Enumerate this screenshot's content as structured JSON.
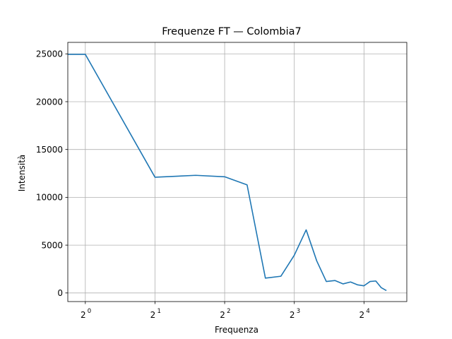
{
  "chart_data": {
    "type": "line",
    "title": "Frequenze FT — Colombia7",
    "xlabel": "Frequenza",
    "ylabel": "Intensità",
    "xscale": "log2",
    "xlim": [
      0.84,
      24.5
    ],
    "ylim": [
      -900,
      26200
    ],
    "grid": true,
    "x_ticks": [
      {
        "value": 1,
        "base": "2",
        "exp": "0"
      },
      {
        "value": 2,
        "base": "2",
        "exp": "1"
      },
      {
        "value": 4,
        "base": "2",
        "exp": "2"
      },
      {
        "value": 8,
        "base": "2",
        "exp": "3"
      },
      {
        "value": 16,
        "base": "2",
        "exp": "4"
      }
    ],
    "y_ticks": [
      {
        "value": 0,
        "label": "0"
      },
      {
        "value": 5000,
        "label": "5000"
      },
      {
        "value": 10000,
        "label": "10000"
      },
      {
        "value": 15000,
        "label": "15000"
      },
      {
        "value": 20000,
        "label": "20000"
      },
      {
        "value": 25000,
        "label": "25000"
      }
    ],
    "series": [
      {
        "color": "#1f77b4",
        "x": [
          0.84,
          1.0,
          2.0,
          3.0,
          4.0,
          5.0,
          6.0,
          7.0,
          8.0,
          9.0,
          10.0,
          11.0,
          12.0,
          13.0,
          14.0,
          15.0,
          16.0,
          17.0,
          18.0,
          19.0,
          20.0
        ],
        "y": [
          24950,
          24950,
          12100,
          12300,
          12150,
          11300,
          1550,
          1750,
          3950,
          6600,
          3350,
          1200,
          1300,
          950,
          1150,
          850,
          750,
          1200,
          1250,
          550,
          250
        ]
      }
    ]
  }
}
